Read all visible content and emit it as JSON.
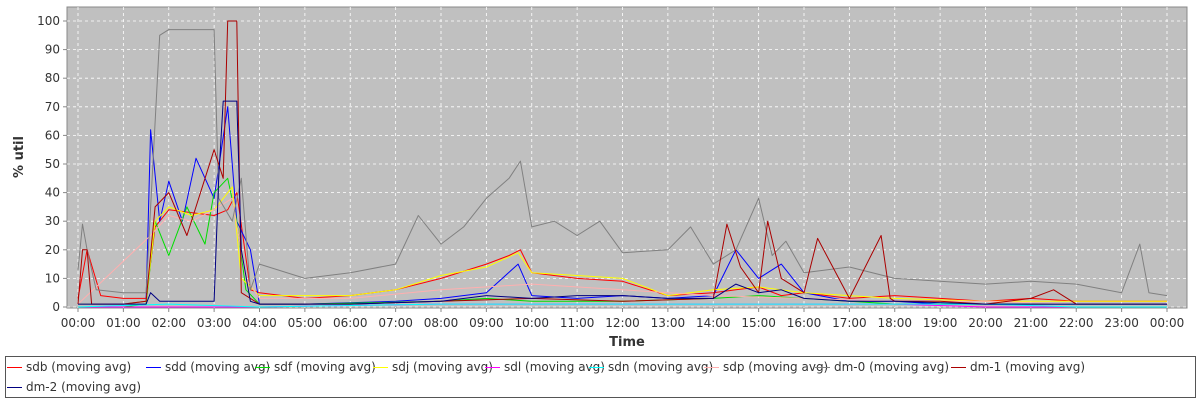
{
  "chart_data": {
    "type": "line",
    "title": "",
    "xlabel": "Time",
    "ylabel": "% util",
    "ylim": [
      0,
      100
    ],
    "yticks": [
      "0",
      "10",
      "20",
      "30",
      "40",
      "50",
      "60",
      "70",
      "80",
      "90",
      "100"
    ],
    "xticks": [
      "00:00",
      "01:00",
      "02:00",
      "03:00",
      "04:00",
      "05:00",
      "06:00",
      "07:00",
      "08:00",
      "09:00",
      "10:00",
      "11:00",
      "12:00",
      "13:00",
      "14:00",
      "15:00",
      "16:00",
      "17:00",
      "18:00",
      "19:00",
      "20:00",
      "21:00",
      "22:00",
      "23:00",
      "00:00"
    ],
    "grid": true,
    "legend_position": "bottom",
    "plot_background": "#c0c0c0",
    "series": [
      {
        "name": "sdb (moving avg)",
        "color": "#ff0000",
        "x": [
          0,
          0.2,
          0.5,
          1,
          1.5,
          1.7,
          2,
          2.5,
          3,
          3.3,
          3.5,
          3.8,
          4,
          5,
          6,
          7,
          8,
          9,
          9.5,
          9.75,
          10,
          11,
          12,
          13,
          14,
          14.5,
          15,
          15.5,
          16,
          17,
          18,
          19,
          20,
          21,
          22,
          23,
          23.5,
          24
        ],
        "values": [
          3,
          20,
          4,
          3,
          3,
          28,
          34,
          33,
          32,
          34,
          40,
          6,
          5,
          3,
          4,
          6,
          10,
          15,
          18,
          20,
          12,
          10,
          9,
          4,
          5,
          6,
          7,
          4,
          5,
          3,
          4,
          3,
          2,
          3,
          2,
          2,
          2,
          2
        ]
      },
      {
        "name": "sdd (moving avg)",
        "color": "#0000ff",
        "x": [
          0,
          0.5,
          1,
          1.5,
          1.6,
          1.8,
          2,
          2.3,
          2.6,
          3,
          3.3,
          3.5,
          3.8,
          4,
          5,
          7,
          8,
          9,
          9.7,
          10,
          11,
          12,
          13,
          14,
          14.5,
          15,
          15.5,
          16,
          17,
          18,
          19,
          20,
          21,
          22,
          23,
          24
        ],
        "values": [
          1,
          1,
          1,
          2,
          62,
          30,
          44,
          30,
          52,
          38,
          70,
          30,
          20,
          1,
          1,
          2,
          3,
          5,
          15,
          4,
          3,
          4,
          3,
          4,
          20,
          10,
          15,
          5,
          2,
          2,
          1,
          1,
          1,
          1,
          1,
          1
        ]
      },
      {
        "name": "sdf (moving avg)",
        "color": "#00dd00",
        "x": [
          0,
          1,
          1.5,
          1.7,
          2,
          2.4,
          2.8,
          3,
          3.3,
          3.5,
          3.7,
          4,
          5,
          8,
          9,
          10,
          12,
          14,
          15,
          16,
          17,
          18,
          19,
          20,
          22,
          24
        ],
        "values": [
          0,
          0,
          1,
          30,
          18,
          35,
          22,
          40,
          45,
          30,
          6,
          1,
          1,
          2,
          3,
          2,
          2,
          3,
          4,
          3,
          2,
          1,
          1,
          1,
          1,
          1
        ]
      },
      {
        "name": "sdj (moving avg)",
        "color": "#ffff00",
        "x": [
          0,
          1,
          1.5,
          1.7,
          2,
          2.5,
          3,
          3.4,
          3.6,
          4,
          6,
          7,
          8,
          9,
          9.7,
          10,
          11,
          12,
          13,
          14,
          15,
          16,
          17,
          18,
          20,
          22,
          24
        ],
        "values": [
          1,
          1,
          2,
          30,
          35,
          32,
          34,
          42,
          10,
          4,
          4,
          6,
          11,
          14,
          19,
          12,
          11,
          10,
          4,
          6,
          7,
          5,
          4,
          3,
          2,
          2,
          2
        ]
      },
      {
        "name": "sdl (moving avg)",
        "color": "#ff00ff",
        "x": [
          0,
          2,
          4,
          8,
          10,
          12,
          14,
          16,
          18,
          20,
          22,
          24
        ],
        "values": [
          0,
          0,
          0,
          1,
          1,
          1,
          1,
          1,
          1,
          0,
          0,
          0
        ]
      },
      {
        "name": "sdn (moving avg)",
        "color": "#00ffff",
        "x": [
          0,
          2,
          4,
          8,
          10,
          12,
          14,
          16,
          18,
          20,
          22,
          24
        ],
        "values": [
          0,
          1,
          0,
          1,
          1,
          1,
          1,
          1,
          1,
          1,
          0,
          0
        ]
      },
      {
        "name": "sdp (moving avg)",
        "color": "#ffafaf",
        "x": [
          0,
          1.6,
          2,
          2.5,
          3,
          3.4,
          3.7,
          4,
          6,
          8,
          10,
          12,
          14,
          16,
          18,
          20,
          22,
          24
        ],
        "values": [
          1,
          25,
          32,
          30,
          34,
          38,
          10,
          3,
          3,
          6,
          8,
          6,
          4,
          3,
          2,
          2,
          1,
          1
        ]
      },
      {
        "name": "dm-0 (moving avg)",
        "color": "#808080",
        "x": [
          0,
          0.1,
          0.2,
          0.4,
          1,
          1.5,
          1.8,
          2,
          2.5,
          3,
          3.1,
          3.4,
          3.6,
          3.8,
          4,
          5,
          6,
          7,
          7.5,
          8,
          8.5,
          9,
          9.5,
          9.75,
          10,
          10.5,
          11,
          11.5,
          12,
          13,
          13.5,
          14,
          14.5,
          15,
          15.3,
          15.6,
          16,
          17,
          18,
          19,
          20,
          21,
          22,
          23,
          23.4,
          23.6,
          24
        ],
        "values": [
          13,
          29,
          20,
          6,
          5,
          5,
          95,
          97,
          97,
          97,
          38,
          30,
          45,
          6,
          15,
          10,
          12,
          15,
          32,
          22,
          28,
          38,
          45,
          51,
          28,
          30,
          25,
          30,
          19,
          20,
          28,
          15,
          20,
          38,
          18,
          23,
          12,
          14,
          10,
          9,
          8,
          9,
          8,
          5,
          22,
          5,
          4
        ]
      },
      {
        "name": "dm-1 (moving avg)",
        "color": "#aa0000",
        "x": [
          0,
          0.1,
          0.2,
          0.3,
          1,
          1.5,
          1.7,
          2,
          2.4,
          3,
          3.2,
          3.3,
          3.5,
          3.6,
          4,
          6,
          8,
          10,
          12,
          14,
          14.3,
          14.6,
          15,
          15.2,
          15.5,
          16,
          16.3,
          17,
          17.7,
          17.9,
          18,
          19,
          20,
          21,
          21.5,
          22,
          23,
          24
        ],
        "values": [
          1,
          20,
          20,
          1,
          1,
          2,
          35,
          40,
          25,
          55,
          45,
          100,
          100,
          5,
          1,
          1,
          2,
          3,
          2,
          3,
          29,
          14,
          5,
          30,
          10,
          5,
          24,
          3,
          25,
          3,
          2,
          2,
          1,
          3,
          6,
          1,
          1,
          1
        ]
      },
      {
        "name": "dm-2 (moving avg)",
        "color": "#000080",
        "x": [
          0,
          1,
          1.5,
          1.6,
          1.8,
          2,
          3,
          3.1,
          3.2,
          3.5,
          3.6,
          3.8,
          4,
          6,
          8,
          9,
          10,
          11,
          12,
          13,
          14,
          14.5,
          15,
          15.5,
          16,
          17,
          18,
          20,
          22,
          24
        ],
        "values": [
          1,
          1,
          1,
          5,
          2,
          2,
          2,
          45,
          72,
          72,
          20,
          2,
          1,
          1,
          2,
          4,
          3,
          4,
          4,
          3,
          3,
          8,
          5,
          6,
          3,
          2,
          2,
          1,
          1,
          1
        ]
      }
    ]
  }
}
